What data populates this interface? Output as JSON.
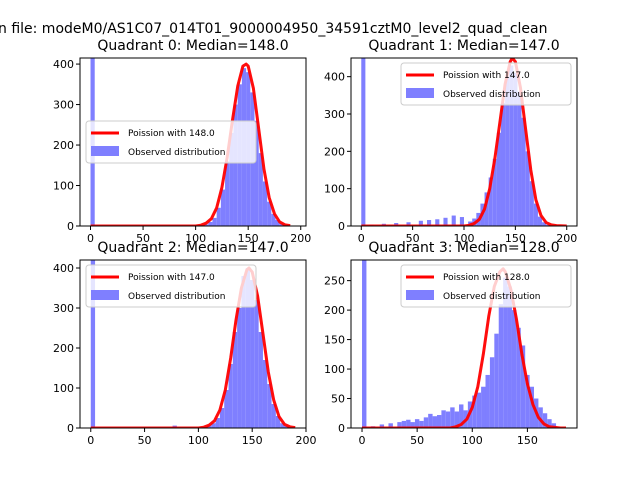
{
  "figure": {
    "suptitle": "n file: modeM0/AS1C07_014T01_9000004950_34591cztM0_level2_quad_clean"
  },
  "colors": {
    "histogram": "#7f7fff",
    "poisson_line": "#ff0000",
    "legend_bg": "#ffffff"
  },
  "chart_data": [
    {
      "type": "bar",
      "title": "Quadrant 0: Median=148.0",
      "xlim": [
        -10,
        205
      ],
      "ylim": [
        0,
        415
      ],
      "xticks": [
        0,
        50,
        100,
        150,
        200
      ],
      "yticks": [
        0,
        100,
        200,
        300,
        400
      ],
      "legend_position": "center-right",
      "series": [
        {
          "name": "Poission with 148.0",
          "kind": "line",
          "mean": 148.0,
          "x": [
            0,
            10,
            20,
            30,
            40,
            50,
            60,
            70,
            80,
            90,
            100,
            105,
            110,
            115,
            120,
            125,
            130,
            135,
            140,
            145,
            148,
            150,
            155,
            160,
            165,
            170,
            175,
            180,
            185,
            190
          ],
          "y": [
            0,
            0,
            0,
            0,
            0,
            0,
            0,
            0,
            0,
            0,
            0,
            2,
            7,
            18,
            45,
            95,
            170,
            260,
            345,
            395,
            400,
            395,
            340,
            240,
            140,
            70,
            30,
            10,
            3,
            1
          ]
        },
        {
          "name": "Observed distribution",
          "kind": "hist",
          "bin_width": 4,
          "x": [
            0,
            104,
            108,
            112,
            116,
            120,
            124,
            128,
            132,
            136,
            140,
            144,
            148,
            152,
            156,
            160,
            164,
            168,
            172,
            176,
            180,
            184,
            188
          ],
          "y": [
            415,
            2,
            4,
            10,
            20,
            45,
            90,
            160,
            230,
            300,
            350,
            390,
            380,
            330,
            260,
            180,
            110,
            60,
            30,
            15,
            6,
            3,
            1
          ]
        }
      ]
    },
    {
      "type": "bar",
      "title": "Quadrant 1: Median=147.0",
      "xlim": [
        -10,
        210
      ],
      "ylim": [
        0,
        450
      ],
      "xticks": [
        0,
        50,
        100,
        150,
        200
      ],
      "yticks": [
        0,
        100,
        200,
        300,
        400
      ],
      "legend_position": "top-right",
      "series": [
        {
          "name": "Poission with 147.0",
          "kind": "line",
          "mean": 147.0,
          "x": [
            0,
            20,
            40,
            60,
            80,
            100,
            105,
            110,
            115,
            120,
            125,
            130,
            135,
            140,
            145,
            147,
            150,
            155,
            160,
            165,
            170,
            175,
            180,
            185,
            190,
            200
          ],
          "y": [
            0,
            0,
            0,
            0,
            0,
            0,
            2,
            7,
            18,
            45,
            100,
            180,
            280,
            380,
            440,
            450,
            440,
            370,
            260,
            150,
            70,
            28,
            9,
            3,
            1,
            0
          ],
          "trailing_x": [
            200
          ],
          "trailing_y": [
            0
          ]
        },
        {
          "name": "Observed distribution",
          "kind": "hist",
          "bin_width": 4,
          "x": [
            0,
            8,
            20,
            32,
            44,
            56,
            64,
            72,
            80,
            88,
            96,
            104,
            108,
            112,
            116,
            120,
            124,
            128,
            132,
            136,
            140,
            144,
            148,
            152,
            156,
            160,
            164,
            168,
            172,
            176,
            180
          ],
          "y": [
            450,
            4,
            6,
            8,
            10,
            14,
            16,
            18,
            22,
            28,
            24,
            12,
            20,
            35,
            60,
            90,
            130,
            180,
            250,
            330,
            400,
            430,
            410,
            360,
            290,
            200,
            120,
            60,
            25,
            10,
            3
          ]
        }
      ]
    },
    {
      "type": "bar",
      "title": "Quadrant 2: Median=147.0",
      "xlim": [
        -10,
        200
      ],
      "ylim": [
        0,
        420
      ],
      "xticks": [
        0,
        50,
        100,
        150,
        200
      ],
      "yticks": [
        0,
        100,
        200,
        300,
        400
      ],
      "legend_position": "top-right",
      "series": [
        {
          "name": "Poission with 147.0",
          "kind": "line",
          "mean": 147.0,
          "x": [
            0,
            20,
            40,
            60,
            80,
            100,
            105,
            110,
            115,
            120,
            125,
            130,
            135,
            140,
            145,
            147,
            150,
            155,
            160,
            165,
            170,
            175,
            180,
            185,
            190
          ],
          "y": [
            0,
            0,
            0,
            0,
            0,
            0,
            2,
            7,
            18,
            45,
            95,
            175,
            270,
            350,
            395,
            400,
            390,
            330,
            235,
            140,
            70,
            28,
            9,
            3,
            1
          ]
        },
        {
          "name": "Observed distribution",
          "kind": "hist",
          "bin_width": 4,
          "x": [
            0,
            76,
            104,
            108,
            112,
            116,
            120,
            124,
            128,
            132,
            136,
            140,
            144,
            148,
            152,
            156,
            160,
            164,
            168,
            172,
            176,
            180,
            184
          ],
          "y": [
            420,
            6,
            3,
            6,
            12,
            25,
            50,
            95,
            160,
            240,
            300,
            380,
            400,
            370,
            320,
            240,
            170,
            110,
            60,
            30,
            12,
            5,
            2
          ]
        }
      ]
    },
    {
      "type": "bar",
      "title": "Quadrant 3: Median=128.0",
      "xlim": [
        -10,
        195
      ],
      "ylim": [
        0,
        285
      ],
      "xticks": [
        0,
        50,
        100,
        150
      ],
      "yticks": [
        0,
        50,
        100,
        150,
        200,
        250
      ],
      "legend_position": "top-right",
      "series": [
        {
          "name": "Poission with 128.0",
          "kind": "line",
          "mean": 128.0,
          "x": [
            0,
            20,
            40,
            60,
            80,
            85,
            90,
            95,
            100,
            105,
            110,
            115,
            120,
            125,
            128,
            130,
            135,
            140,
            145,
            150,
            155,
            160,
            165,
            170,
            180,
            185
          ],
          "y": [
            0,
            0,
            0,
            0,
            0,
            2,
            6,
            15,
            35,
            70,
            125,
            190,
            240,
            265,
            270,
            265,
            235,
            185,
            125,
            75,
            40,
            18,
            7,
            2,
            0,
            0
          ]
        },
        {
          "name": "Observed distribution",
          "kind": "hist",
          "bin_width": 4,
          "x": [
            0,
            8,
            16,
            24,
            32,
            36,
            40,
            44,
            48,
            52,
            56,
            60,
            64,
            68,
            72,
            76,
            80,
            84,
            88,
            92,
            96,
            100,
            104,
            108,
            112,
            116,
            120,
            124,
            128,
            132,
            136,
            140,
            144,
            148,
            152,
            156,
            160,
            164,
            168,
            172
          ],
          "y": [
            285,
            3,
            6,
            8,
            10,
            12,
            14,
            10,
            15,
            12,
            18,
            24,
            20,
            22,
            30,
            28,
            35,
            28,
            40,
            30,
            45,
            55,
            60,
            70,
            90,
            120,
            160,
            210,
            255,
            240,
            200,
            170,
            140,
            90,
            70,
            50,
            35,
            25,
            15,
            8
          ]
        }
      ]
    }
  ]
}
